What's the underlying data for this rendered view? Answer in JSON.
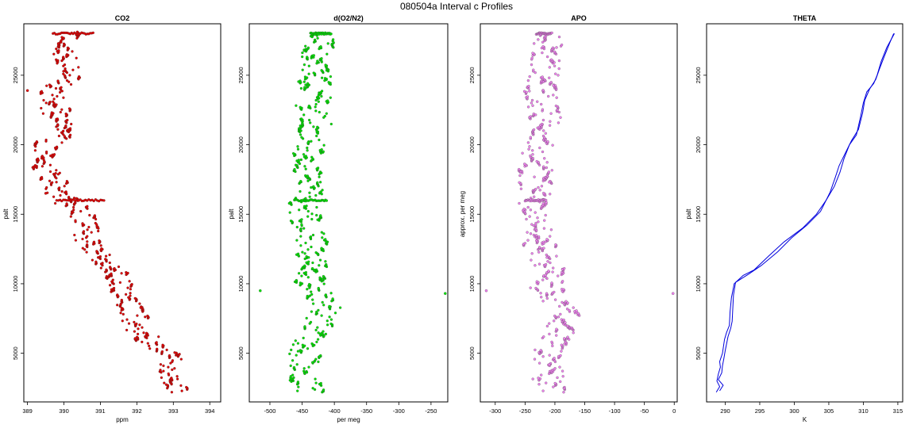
{
  "figure": {
    "title": "080504a   Interval c Profiles"
  },
  "chart_data": [
    {
      "type": "scatter",
      "title": "CO2",
      "xlabel": "ppm",
      "ylabel": "palt",
      "xlim": [
        388.9,
        394.3
      ],
      "ylim": [
        1500,
        28700
      ],
      "xticks": [
        389,
        390,
        391,
        392,
        393,
        394
      ],
      "xtick_labels": [
        "389",
        "390",
        "391",
        "392",
        "393",
        "394"
      ],
      "yticks": [
        5000,
        10000,
        15000,
        20000,
        25000
      ],
      "ytick_labels": [
        "5000",
        "10000",
        "15000",
        "20000",
        "25000"
      ],
      "color": "#e00000",
      "grid": false,
      "profile": [
        [
          2200,
          393.1
        ],
        [
          3000,
          393.0
        ],
        [
          4000,
          392.9
        ],
        [
          5000,
          392.8
        ],
        [
          6000,
          392.3
        ],
        [
          7000,
          392.0
        ],
        [
          8000,
          391.9
        ],
        [
          9000,
          391.7
        ],
        [
          10000,
          391.6
        ],
        [
          11000,
          391.4
        ],
        [
          12000,
          390.9
        ],
        [
          13000,
          390.6
        ],
        [
          14000,
          390.7
        ],
        [
          15000,
          390.5
        ],
        [
          16000,
          390.0
        ],
        [
          17000,
          389.8
        ],
        [
          18000,
          389.6
        ],
        [
          19000,
          389.4
        ],
        [
          20000,
          389.6
        ],
        [
          21000,
          390.1
        ],
        [
          22000,
          389.9
        ],
        [
          23000,
          389.6
        ],
        [
          24000,
          389.8
        ],
        [
          25000,
          390.2
        ],
        [
          26000,
          390.0
        ],
        [
          27000,
          389.9
        ],
        [
          28000,
          390.1
        ]
      ],
      "spread": 0.38,
      "excursions": [
        {
          "y": 28000,
          "x_start": 389.7,
          "x_end": 390.8
        },
        {
          "y": 16000,
          "x_start": 389.8,
          "x_end": 391.1
        }
      ],
      "outliers": [
        [
          23900,
          389.0
        ],
        [
          16500,
          389.5
        ]
      ]
    },
    {
      "type": "scatter",
      "title": "d(O2/N2)",
      "xlabel": "per meg",
      "ylabel": "palt",
      "xlim": [
        -532,
        -224
      ],
      "ylim": [
        1500,
        28700
      ],
      "xticks": [
        -500,
        -450,
        -400,
        -350,
        -300,
        -250
      ],
      "xtick_labels": [
        "-500",
        "-450",
        "-400",
        "-350",
        "-300",
        "-250"
      ],
      "yticks": [
        5000,
        10000,
        15000,
        20000,
        25000
      ],
      "ytick_labels": [
        "5000",
        "10000",
        "15000",
        "20000",
        "25000"
      ],
      "color": "#00e000",
      "grid": false,
      "profile": [
        [
          2200,
          -440
        ],
        [
          3000,
          -442
        ],
        [
          4000,
          -445
        ],
        [
          5000,
          -450
        ],
        [
          6000,
          -435
        ],
        [
          7000,
          -425
        ],
        [
          8000,
          -415
        ],
        [
          9000,
          -425
        ],
        [
          10000,
          -435
        ],
        [
          11000,
          -430
        ],
        [
          12000,
          -432
        ],
        [
          13000,
          -435
        ],
        [
          14000,
          -440
        ],
        [
          15000,
          -445
        ],
        [
          16000,
          -445
        ],
        [
          17000,
          -440
        ],
        [
          18000,
          -437
        ],
        [
          19000,
          -440
        ],
        [
          20000,
          -438
        ],
        [
          21000,
          -432
        ],
        [
          22000,
          -430
        ],
        [
          23000,
          -433
        ],
        [
          24000,
          -432
        ],
        [
          25000,
          -430
        ],
        [
          26000,
          -428
        ],
        [
          27000,
          -427
        ],
        [
          28000,
          -427
        ]
      ],
      "spread": 26,
      "excursions": [
        {
          "y": 28000,
          "x_start": -437,
          "x_end": -405
        },
        {
          "y": 16000,
          "x_start": -462,
          "x_end": -412
        }
      ],
      "outliers": [
        [
          9500,
          -515
        ],
        [
          9300,
          -228
        ]
      ]
    },
    {
      "type": "scatter",
      "title": "APO",
      "xlabel": "",
      "ylabel": "approx. per meg",
      "xlim": [
        -325,
        5
      ],
      "ylim": [
        1500,
        28700
      ],
      "xticks": [
        -300,
        -250,
        -200,
        -150,
        -100,
        -50,
        0
      ],
      "xtick_labels": [
        "-300",
        "-250",
        "-200",
        "-150",
        "-100",
        "-50",
        "0"
      ],
      "yticks": [
        5000,
        10000,
        15000,
        20000,
        25000
      ],
      "ytick_labels": [
        "5000",
        "10000",
        "15000",
        "20000",
        "25000"
      ],
      "color": "#ee82ee",
      "grid": false,
      "profile": [
        [
          2200,
          -210
        ],
        [
          3000,
          -212
        ],
        [
          4000,
          -215
        ],
        [
          5000,
          -215
        ],
        [
          6000,
          -200
        ],
        [
          7000,
          -190
        ],
        [
          8000,
          -185
        ],
        [
          9000,
          -205
        ],
        [
          10000,
          -215
        ],
        [
          11000,
          -212
        ],
        [
          12000,
          -222
        ],
        [
          13000,
          -226
        ],
        [
          14000,
          -228
        ],
        [
          15000,
          -232
        ],
        [
          16000,
          -233
        ],
        [
          17000,
          -232
        ],
        [
          18000,
          -232
        ],
        [
          19000,
          -228
        ],
        [
          20000,
          -225
        ],
        [
          21000,
          -218
        ],
        [
          22000,
          -215
        ],
        [
          23000,
          -220
        ],
        [
          24000,
          -222
        ],
        [
          25000,
          -220
        ],
        [
          26000,
          -218
        ],
        [
          27000,
          -216
        ],
        [
          28000,
          -218
        ]
      ],
      "spread": 28,
      "excursions": [
        {
          "y": 28000,
          "x_start": -230,
          "x_end": -205
        },
        {
          "y": 16000,
          "x_start": -250,
          "x_end": -215
        }
      ],
      "outliers": [
        [
          9500,
          -315
        ],
        [
          9300,
          -2
        ]
      ]
    },
    {
      "type": "line",
      "title": "THETA",
      "xlabel": "K",
      "ylabel": "palt",
      "xlim": [
        287.3,
        315.7
      ],
      "ylim": [
        1500,
        28700
      ],
      "xticks": [
        290,
        295,
        300,
        305,
        310,
        315
      ],
      "xtick_labels": [
        "290",
        "295",
        "300",
        "305",
        "310",
        "315"
      ],
      "yticks": [
        5000,
        10000,
        15000,
        20000,
        25000
      ],
      "ytick_labels": [
        "5000",
        "10000",
        "15000",
        "20000",
        "25000"
      ],
      "color": "#0000dd",
      "grid": false,
      "series": [
        {
          "points": [
            [
              288.7,
              2200
            ],
            [
              289.2,
              2600
            ],
            [
              288.8,
              3000
            ],
            [
              289.0,
              3500
            ],
            [
              289.3,
              4000
            ],
            [
              289.2,
              4400
            ],
            [
              289.6,
              5000
            ],
            [
              289.9,
              6000
            ],
            [
              290.2,
              6500
            ],
            [
              290.6,
              7000
            ],
            [
              290.7,
              8000
            ],
            [
              290.9,
              9000
            ],
            [
              291.3,
              10000
            ],
            [
              292.6,
              10600
            ],
            [
              294.2,
              11000
            ],
            [
              296.3,
              12000
            ],
            [
              298.5,
              13000
            ],
            [
              301.2,
              14000
            ],
            [
              303.2,
              15000
            ],
            [
              304.6,
              16000
            ],
            [
              305.8,
              17000
            ],
            [
              306.6,
              18000
            ],
            [
              307.2,
              19000
            ],
            [
              308.0,
              20000
            ],
            [
              309.0,
              20700
            ],
            [
              309.6,
              22000
            ],
            [
              310.0,
              23000
            ],
            [
              310.5,
              23800
            ],
            [
              311.5,
              24400
            ],
            [
              312.0,
              25000
            ],
            [
              312.6,
              26000
            ],
            [
              313.4,
              27000
            ],
            [
              314.5,
              28000
            ]
          ]
        },
        {
          "points": [
            [
              289.2,
              2300
            ],
            [
              289.7,
              2700
            ],
            [
              289.0,
              3100
            ],
            [
              289.5,
              3600
            ],
            [
              289.6,
              4100
            ],
            [
              289.8,
              4600
            ],
            [
              290.0,
              5200
            ],
            [
              290.4,
              6200
            ],
            [
              290.8,
              6800
            ],
            [
              291.0,
              7300
            ],
            [
              291.1,
              8200
            ],
            [
              291.2,
              9200
            ],
            [
              291.5,
              10100
            ],
            [
              293.4,
              10700
            ],
            [
              295.2,
              11300
            ],
            [
              297.6,
              12300
            ],
            [
              299.6,
              13300
            ],
            [
              301.8,
              14200
            ],
            [
              303.8,
              15200
            ],
            [
              304.6,
              16000
            ],
            [
              305.2,
              16600
            ],
            [
              305.9,
              17600
            ],
            [
              306.5,
              18500
            ],
            [
              307.3,
              19300
            ],
            [
              308.3,
              20300
            ],
            [
              309.3,
              21100
            ],
            [
              309.9,
              22300
            ],
            [
              310.2,
              23200
            ],
            [
              310.9,
              24000
            ],
            [
              311.8,
              24700
            ],
            [
              312.3,
              25400
            ],
            [
              313.0,
              26300
            ],
            [
              313.8,
              27300
            ],
            [
              314.4,
              28000
            ]
          ]
        }
      ]
    }
  ]
}
